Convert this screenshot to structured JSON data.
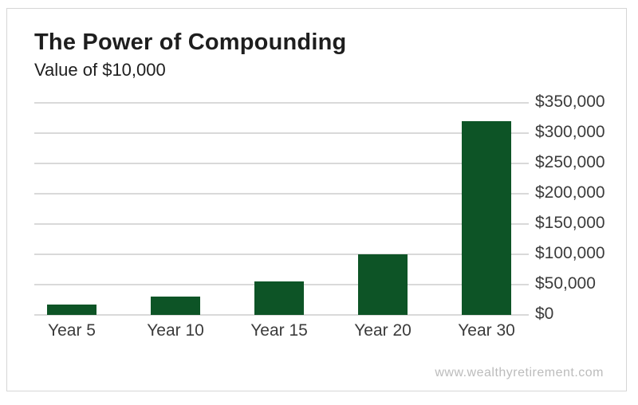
{
  "header": {
    "title": "The Power of Compounding",
    "subtitle": "Value of $10,000"
  },
  "footer": {
    "watermark": "www.wealthyretirement.com"
  },
  "colors": {
    "background": "#ffffff",
    "card_border": "#d6d6d6",
    "title_text": "#1e1e1e",
    "axis_text": "#3b3b3b",
    "gridline": "#d9d9d9",
    "bar_green": "#0d5426",
    "watermark_text": "#bcbcbc"
  },
  "chart_data": {
    "type": "bar",
    "title": "The Power of Compounding",
    "subtitle": "Value of $10,000",
    "categories": [
      "Year 5",
      "Year 10",
      "Year 15",
      "Year 20",
      "Year 30"
    ],
    "values": [
      17000,
      30000,
      55000,
      100000,
      320000
    ],
    "xlabel": "",
    "ylabel": "",
    "ylim": [
      0,
      350000
    ],
    "y_ticks": [
      0,
      50000,
      100000,
      150000,
      200000,
      250000,
      300000,
      350000
    ],
    "y_tick_labels_top_to_bottom": [
      "$350,000",
      "$300,000",
      "$250,000",
      "$200,000",
      "$150,000",
      "$100,000",
      "$50,000",
      "$0"
    ],
    "y_axis_side": "right",
    "grid": "horizontal",
    "legend": "none",
    "bar_color": "#0d5426"
  }
}
